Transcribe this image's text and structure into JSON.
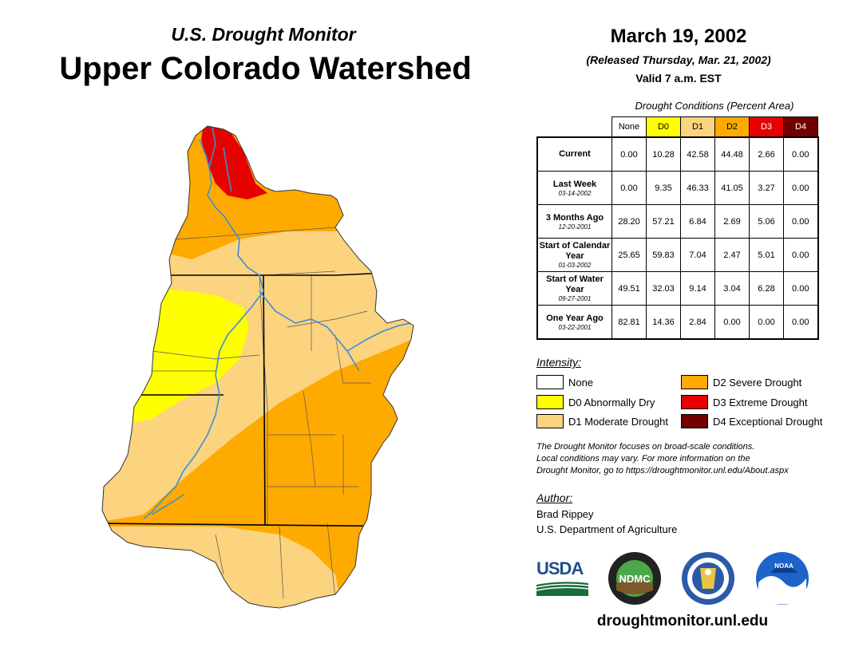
{
  "header": {
    "subtitle": "U.S. Drought Monitor",
    "title": "Upper Colorado Watershed",
    "date": "March 19, 2002",
    "released": "(Released Thursday, Mar. 21, 2002)",
    "valid": "Valid 7 a.m. EST"
  },
  "table": {
    "title": "Drought Conditions (Percent Area)",
    "columns": [
      "None",
      "D0",
      "D1",
      "D2",
      "D3",
      "D4"
    ],
    "column_colors": [
      "#ffffff",
      "#ffff00",
      "#fcd37f",
      "#ffaa00",
      "#e60000",
      "#730000"
    ],
    "rows": [
      {
        "label": "Current",
        "date": "",
        "values": [
          "0.00",
          "10.28",
          "42.58",
          "44.48",
          "2.66",
          "0.00"
        ]
      },
      {
        "label": "Last Week",
        "date": "03-14-2002",
        "values": [
          "0.00",
          "9.35",
          "46.33",
          "41.05",
          "3.27",
          "0.00"
        ]
      },
      {
        "label": "3 Months Ago",
        "date": "12-20-2001",
        "values": [
          "28.20",
          "57.21",
          "6.84",
          "2.69",
          "5.06",
          "0.00"
        ]
      },
      {
        "label": "Start of Calendar Year",
        "date": "01-03-2002",
        "values": [
          "25.65",
          "59.83",
          "7.04",
          "2.47",
          "5.01",
          "0.00"
        ]
      },
      {
        "label": "Start of Water Year",
        "date": "09-27-2001",
        "values": [
          "49.51",
          "32.03",
          "9.14",
          "3.04",
          "6.28",
          "0.00"
        ]
      },
      {
        "label": "One Year Ago",
        "date": "03-22-2001",
        "values": [
          "82.81",
          "14.36",
          "2.84",
          "0.00",
          "0.00",
          "0.00"
        ]
      }
    ]
  },
  "legend": {
    "title": "Intensity:",
    "items": [
      {
        "label": "None",
        "color": "#ffffff"
      },
      {
        "label": "D0 Abnormally Dry",
        "color": "#ffff00"
      },
      {
        "label": "D1 Moderate Drought",
        "color": "#fcd37f"
      },
      {
        "label": "D2 Severe Drought",
        "color": "#ffaa00"
      },
      {
        "label": "D3 Extreme Drought",
        "color": "#e60000"
      },
      {
        "label": "D4 Exceptional Drought",
        "color": "#730000"
      }
    ]
  },
  "note": {
    "line1": "The Drought Monitor focuses on broad-scale conditions.",
    "line2": "Local conditions may vary. For more information on the",
    "line3": "Drought Monitor, go to https://droughtmonitor.unl.edu/About.aspx"
  },
  "author": {
    "title": "Author:",
    "name": "Brad Rippey",
    "org": "U.S. Department of Agriculture"
  },
  "logos": {
    "usda": "USDA",
    "ndmc": "NDMC",
    "noaa": "NOAA"
  },
  "website": "droughtmonitor.unl.edu",
  "map_colors": {
    "river": "#3a8fd9",
    "border": "#000000"
  }
}
